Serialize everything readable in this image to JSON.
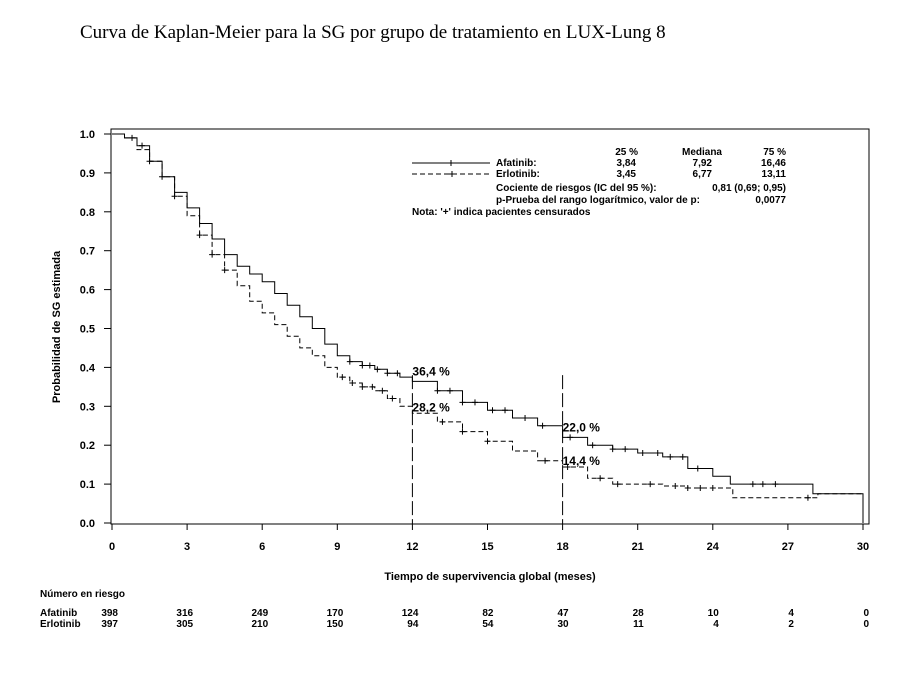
{
  "title": "Curva de Kaplan-Meier para la SG por grupo de tratamiento en LUX-Lung 8",
  "chart_data": {
    "type": "line",
    "subtype": "kaplan-meier",
    "xlabel": "Tiempo de supervivencia global (meses)",
    "ylabel": "Probabilidad de SG estimada",
    "xlim": [
      0,
      30
    ],
    "ylim": [
      0,
      1
    ],
    "x_ticks": [
      0,
      3,
      6,
      9,
      12,
      15,
      18,
      21,
      24,
      27,
      30
    ],
    "y_ticks": [
      "0.0",
      "0.1",
      "0.2",
      "0.3",
      "0.4",
      "0.5",
      "0.6",
      "0.7",
      "0.8",
      "0.9",
      "1.0"
    ],
    "grid": false,
    "legend_position": "top-right",
    "legend": {
      "header": {
        "p25": "25 %",
        "median": "Mediana",
        "p75": "75 %"
      },
      "rows": [
        {
          "name": "Afatinib:",
          "p25": "3,84",
          "median": "7,92",
          "p75": "16,46"
        },
        {
          "name": "Erlotinib:",
          "p25": "3,45",
          "median": "6,77",
          "p75": "13,11"
        }
      ],
      "hr_label": "Cociente de riesgos (IC del 95 %):",
      "hr_value": "0,81 (0,69; 0,95)",
      "p_label": "p-Prueba del rango logarítmico, valor de p:",
      "p_value": "0,0077",
      "note": "Nota: '+'  indica pacientes censurados"
    },
    "annotations": [
      {
        "text": "36,4 %",
        "x": 12,
        "y": 0.364
      },
      {
        "text": "28,2 %",
        "x": 12,
        "y": 0.282
      },
      {
        "text": "22,0 %",
        "x": 18,
        "y": 0.22
      },
      {
        "text": "14,4 %",
        "x": 18,
        "y": 0.144
      }
    ],
    "series": [
      {
        "name": "Afatinib",
        "style": "solid",
        "x": [
          0,
          0.5,
          1,
          1.5,
          2,
          2.5,
          3,
          3.5,
          4,
          4.5,
          5,
          5.5,
          6,
          6.5,
          7,
          7.5,
          8,
          8.5,
          9,
          9.5,
          10,
          10.5,
          11,
          11.5,
          12,
          13,
          14,
          15,
          16,
          17,
          18,
          19,
          20,
          21,
          22,
          23,
          24,
          24.7,
          25,
          26,
          27,
          28,
          28.2,
          30
        ],
        "y": [
          1.0,
          0.99,
          0.97,
          0.93,
          0.89,
          0.85,
          0.81,
          0.77,
          0.73,
          0.69,
          0.66,
          0.64,
          0.62,
          0.59,
          0.56,
          0.53,
          0.5,
          0.46,
          0.43,
          0.415,
          0.405,
          0.395,
          0.385,
          0.375,
          0.364,
          0.34,
          0.31,
          0.29,
          0.27,
          0.25,
          0.22,
          0.2,
          0.19,
          0.18,
          0.17,
          0.14,
          0.12,
          0.1,
          0.1,
          0.1,
          0.1,
          0.075,
          0.075,
          0.0
        ],
        "censored_x": [
          1.2,
          2.0,
          9.5,
          10.0,
          10.3,
          10.6,
          11.0,
          11.4,
          13.0,
          13.5,
          14.0,
          14.5,
          15.2,
          15.7,
          16.5,
          17.2,
          18.3,
          19.2,
          20.0,
          20.5,
          21.2,
          21.8,
          22.3,
          22.8,
          23.4,
          25.6,
          26.0,
          26.5
        ]
      },
      {
        "name": "Erlotinib",
        "style": "dashed",
        "x": [
          0,
          0.5,
          1,
          1.5,
          2,
          2.5,
          3,
          3.5,
          4,
          4.5,
          5,
          5.5,
          6,
          6.5,
          7,
          7.5,
          8,
          8.5,
          9,
          9.5,
          10,
          10.5,
          11,
          11.5,
          12,
          13,
          14,
          15,
          16,
          17,
          18,
          19,
          20,
          21,
          22,
          23,
          24,
          24.8,
          25,
          26,
          27,
          28,
          28.2,
          30
        ],
        "y": [
          1.0,
          0.99,
          0.96,
          0.93,
          0.89,
          0.84,
          0.79,
          0.74,
          0.69,
          0.65,
          0.61,
          0.57,
          0.54,
          0.51,
          0.48,
          0.45,
          0.43,
          0.4,
          0.375,
          0.36,
          0.35,
          0.34,
          0.32,
          0.3,
          0.282,
          0.26,
          0.235,
          0.21,
          0.185,
          0.16,
          0.144,
          0.115,
          0.1,
          0.1,
          0.095,
          0.09,
          0.09,
          0.065,
          0.065,
          0.065,
          0.065,
          0.065,
          0.075,
          0.0
        ],
        "censored_x": [
          0.8,
          1.5,
          2.5,
          3.5,
          4.0,
          4.5,
          9.2,
          9.6,
          10.0,
          10.4,
          10.8,
          11.2,
          13.2,
          14.0,
          15.0,
          17.3,
          18.2,
          19.5,
          20.2,
          21.5,
          22.5,
          23.0,
          23.5,
          24.0,
          27.8
        ]
      }
    ],
    "risk_table": {
      "title": "Número en riesgo",
      "times": [
        0,
        3,
        6,
        9,
        12,
        15,
        18,
        21,
        24,
        27,
        30
      ],
      "rows": [
        {
          "name": "Afatinib",
          "values": [
            "398",
            "316",
            "249",
            "170",
            "124",
            "82",
            "47",
            "28",
            "10",
            "4",
            "0"
          ]
        },
        {
          "name": "Erlotinib",
          "values": [
            "397",
            "305",
            "210",
            "150",
            "94",
            "54",
            "30",
            "11",
            "4",
            "2",
            "0"
          ]
        }
      ]
    }
  }
}
